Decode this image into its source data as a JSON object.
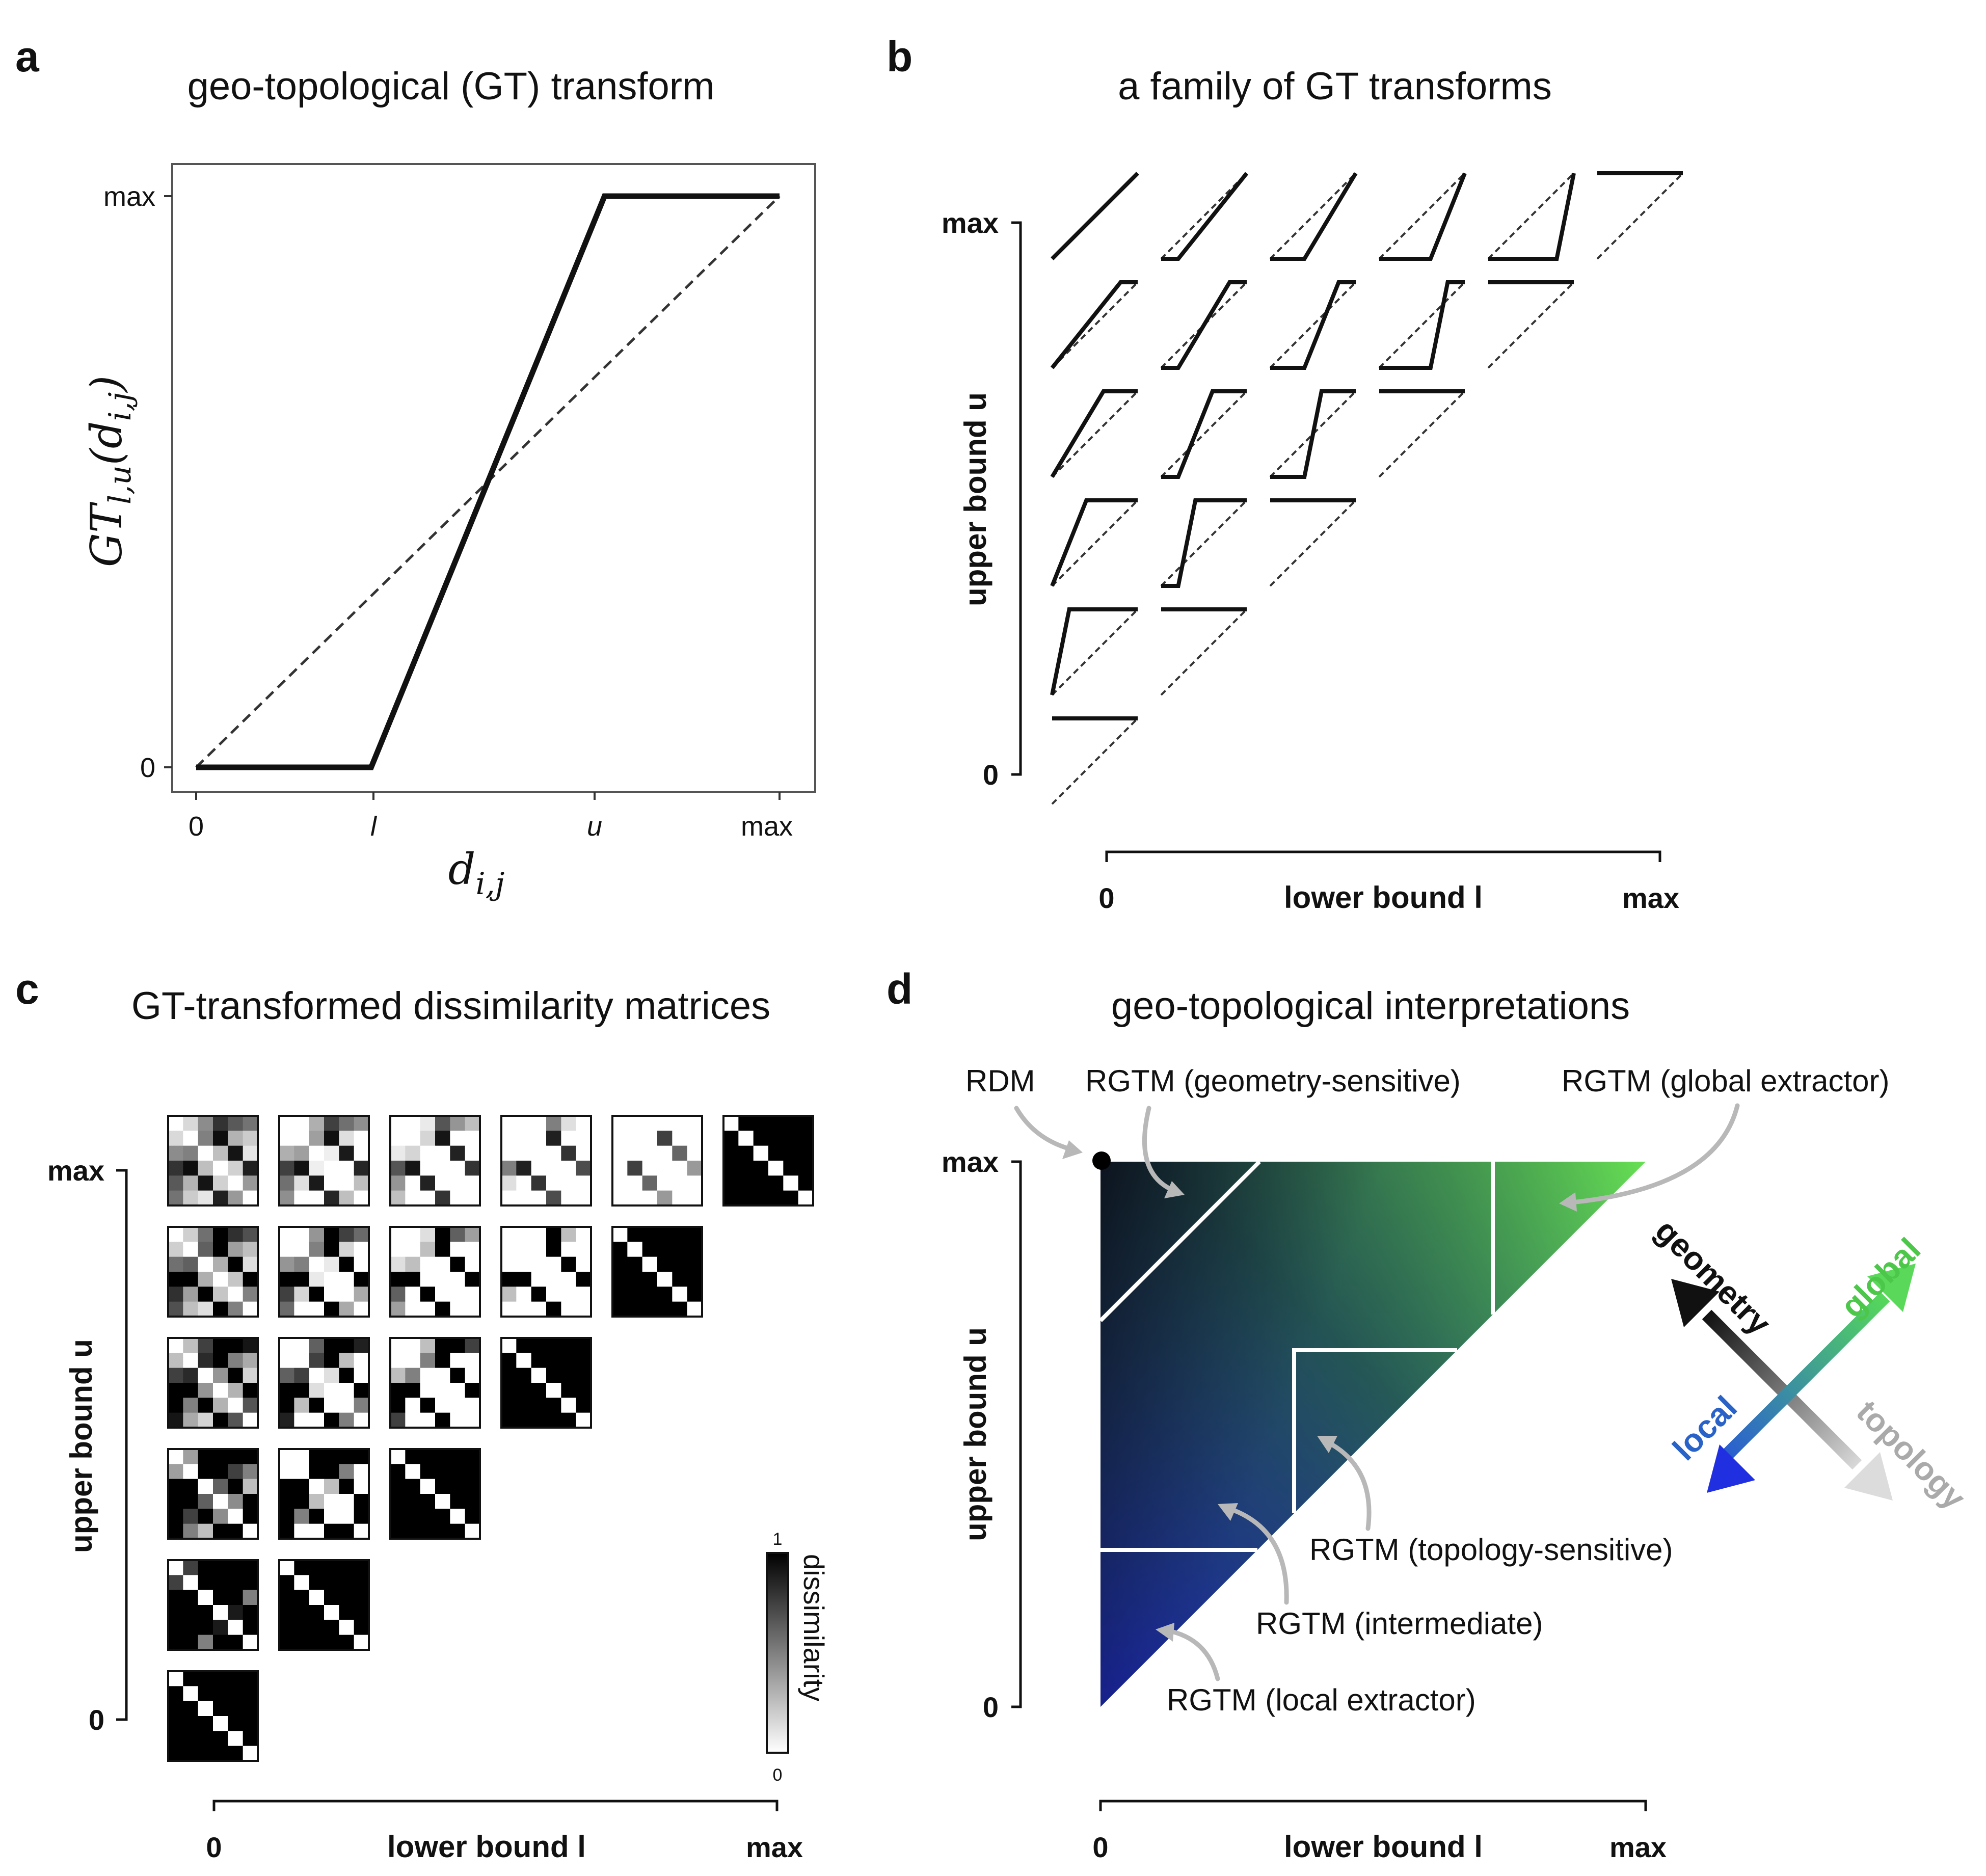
{
  "panel_a": {
    "letter": "a",
    "title": "geo-topological (GT) transform",
    "y_axis_label": "GT_{l,u}(d_{i,j})",
    "y_axis_label_main": "GT",
    "y_axis_label_sub": "l,u",
    "y_axis_label_arg": "(d",
    "y_axis_label_arg_sub": "i,j",
    "y_axis_label_close": ")",
    "x_axis_label_main": "d",
    "x_axis_label_sub": "i,j",
    "y_ticks": [
      "0",
      "max"
    ],
    "x_ticks": [
      "0",
      "l",
      "u",
      "max"
    ],
    "chart_data": {
      "type": "line",
      "series": [
        {
          "name": "GT transform",
          "style": "solid",
          "x": [
            0,
            0.3,
            0.7,
            1.0
          ],
          "y": [
            0,
            0,
            1,
            1
          ]
        },
        {
          "name": "identity",
          "style": "dashed",
          "x": [
            0,
            1
          ],
          "y": [
            0,
            1
          ]
        }
      ],
      "xlim": [
        0,
        1
      ],
      "ylim": [
        0,
        1
      ]
    }
  },
  "panel_b": {
    "letter": "b",
    "title": "a family of GT transforms",
    "y_axis_label": "upper bound u",
    "x_axis_label": "lower bound l",
    "y_ticks": [
      "0",
      "max"
    ],
    "x_ticks": [
      "0",
      "max"
    ],
    "grid": {
      "levels": 6,
      "lower_bounds": [
        0,
        0.2,
        0.4,
        0.6,
        0.8,
        1.0
      ],
      "upper_bounds": [
        1.0,
        0.8,
        0.6,
        0.4,
        0.2,
        0
      ]
    }
  },
  "panel_c": {
    "letter": "c",
    "title": "GT-transformed dissimilarity matrices",
    "y_axis_label": "upper bound u",
    "x_axis_label": "lower bound l",
    "y_ticks": [
      "0",
      "max"
    ],
    "x_ticks": [
      "0",
      "max"
    ],
    "colorbar": {
      "label": "dissimilarity",
      "min_label": "0",
      "max_label": "1"
    }
  },
  "panel_d": {
    "letter": "d",
    "title": "geo-topological interpretations",
    "y_axis_label": "upper bound u",
    "x_axis_label": "lower bound l",
    "y_ticks": [
      "0",
      "max"
    ],
    "x_ticks": [
      "0",
      "max"
    ],
    "labels": {
      "rdm": "RDM",
      "geometry_sensitive": "RGTM (geometry-sensitive)",
      "global_extractor": "RGTM (global extractor)",
      "topology_sensitive": "RGTM (topology-sensitive)",
      "intermediate": "RGTM (intermediate)",
      "local_extractor": "RGTM (local extractor)"
    },
    "arrows": {
      "geometry": "geometry",
      "global": "global",
      "local": "local",
      "topology": "topology"
    },
    "colors": {
      "dark": "#101418",
      "blue": "#1f25ee",
      "green": "#6ef05a",
      "geometry": "#111111",
      "global": "#4cc74a",
      "local": "#2a63c8",
      "topology": "#aaaaaa"
    }
  }
}
